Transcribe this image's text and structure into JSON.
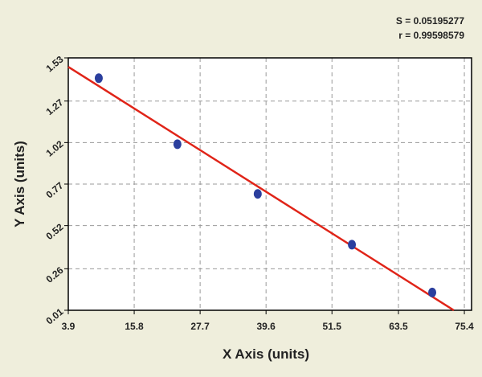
{
  "chart_data": {
    "type": "scatter",
    "x_label": "X Axis (units)",
    "y_label": "Y Axis (units)",
    "annotations": [
      "S = 0.05195277",
      "r = 0.99598579"
    ],
    "series": [
      {
        "color": "#2b3f9e",
        "x": [
          9.4,
          23.6,
          38.1,
          55.1,
          69.6
        ],
        "values": [
          1.408,
          1.01,
          0.711,
          0.405,
          0.117
        ]
      }
    ],
    "fit": {
      "color": "#e02418",
      "x": [
        3.9,
        73.5
      ],
      "values": [
        1.476,
        0.01
      ]
    },
    "xlim": [
      3.9,
      76.7
    ],
    "xticks": [
      3.9,
      15.8,
      27.7,
      39.6,
      51.5,
      63.5,
      75.4
    ],
    "ylim": [
      0.01,
      1.53
    ],
    "yticks": [
      0.01,
      0.26,
      0.52,
      0.77,
      1.02,
      1.27,
      1.53
    ],
    "grid": true
  }
}
